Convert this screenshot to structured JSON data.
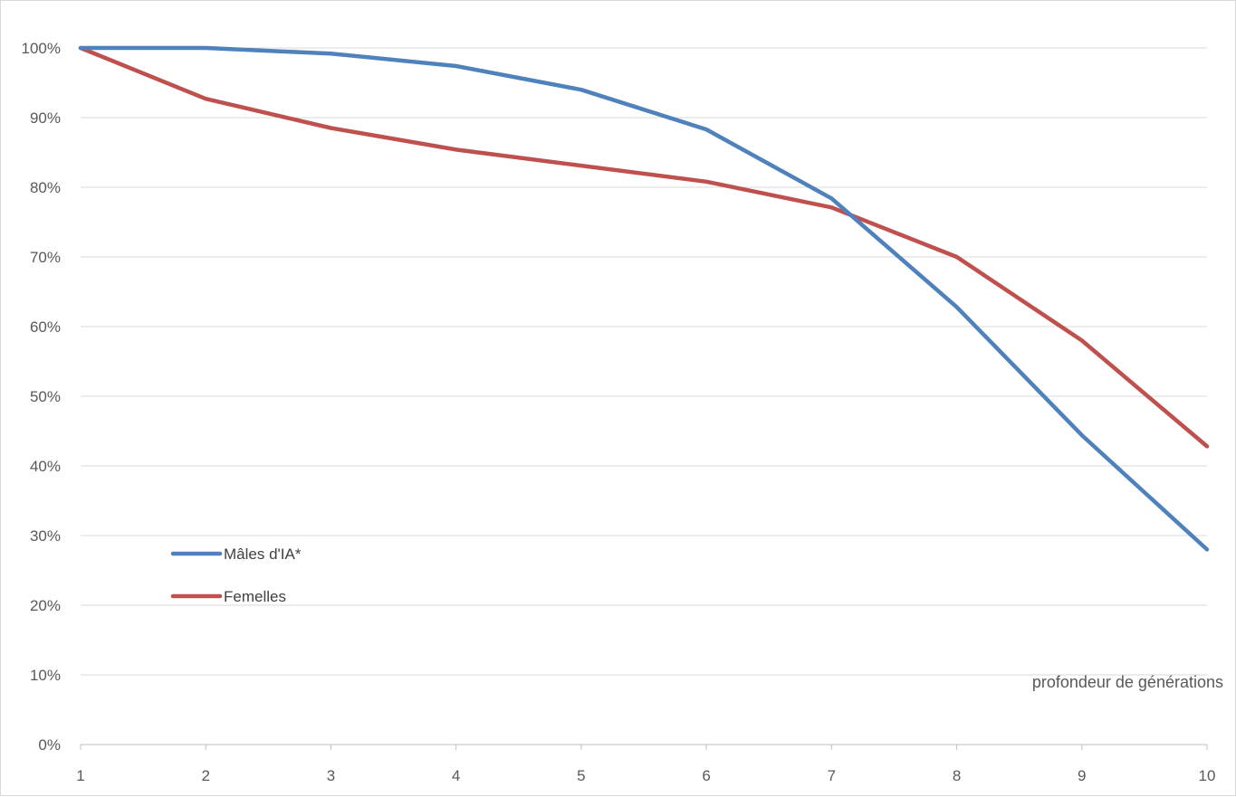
{
  "chart_data": {
    "type": "line",
    "title": "",
    "xlabel": "profondeur de générations",
    "ylabel": "",
    "x": [
      1,
      2,
      3,
      4,
      5,
      6,
      7,
      8,
      9,
      10
    ],
    "ylim": [
      0,
      100
    ],
    "y_ticks": [
      0,
      10,
      20,
      30,
      40,
      50,
      60,
      70,
      80,
      90,
      100
    ],
    "y_tick_labels": [
      "0%",
      "10%",
      "20%",
      "30%",
      "40%",
      "50%",
      "60%",
      "70%",
      "80%",
      "90%",
      "100%"
    ],
    "x_tick_labels": [
      "1",
      "2",
      "3",
      "4",
      "5",
      "6",
      "7",
      "8",
      "9",
      "10"
    ],
    "grid": true,
    "legend_position": "left",
    "series": [
      {
        "name": "Mâles d'IA*",
        "color": "#4f81bd",
        "values": [
          100,
          100,
          99.2,
          97.4,
          94,
          88.3,
          78.4,
          62.8,
          44.4,
          28
        ]
      },
      {
        "name": "Femelles",
        "color": "#c0504d",
        "values": [
          100,
          92.7,
          88.5,
          85.4,
          83.1,
          80.8,
          77.1,
          70,
          58,
          42.8
        ]
      }
    ]
  }
}
